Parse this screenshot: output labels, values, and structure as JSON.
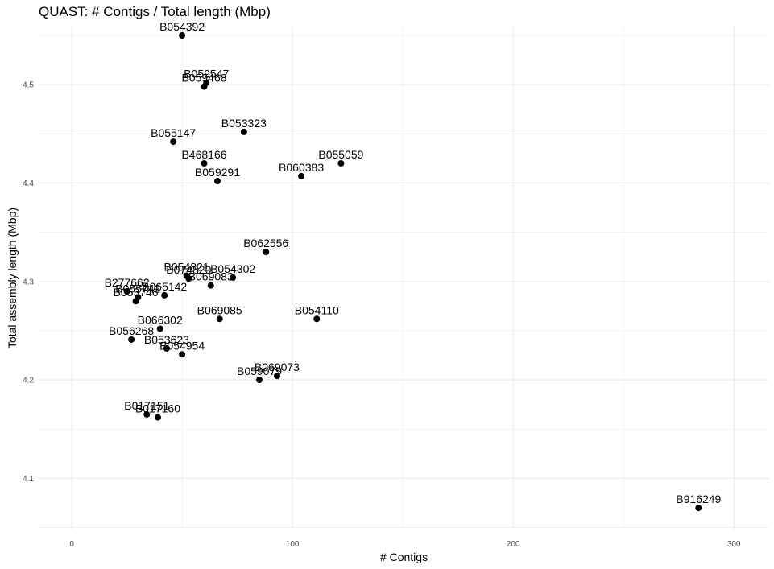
{
  "chart_data": {
    "type": "scatter",
    "title": "QUAST: # Contigs / Total length (Mbp)",
    "xlabel": "# Contigs",
    "ylabel": "Total assembly length (Mbp)",
    "xlim": [
      -15,
      316
    ],
    "ylim": [
      4.048,
      4.559
    ],
    "x_ticks": [
      0,
      100,
      200,
      300
    ],
    "y_ticks": [
      4.1,
      4.2,
      4.3,
      4.4,
      4.5
    ],
    "grid": true,
    "points": [
      {
        "label": "B054392",
        "x": 50,
        "y": 4.55
      },
      {
        "label": "B059547",
        "x": 61,
        "y": 4.502
      },
      {
        "label": "B059468",
        "x": 60,
        "y": 4.498
      },
      {
        "label": "B053323",
        "x": 78,
        "y": 4.452
      },
      {
        "label": "B055147",
        "x": 46,
        "y": 4.442
      },
      {
        "label": "B468166",
        "x": 60,
        "y": 4.42
      },
      {
        "label": "B055059",
        "x": 122,
        "y": 4.42
      },
      {
        "label": "B060383",
        "x": 104,
        "y": 4.407
      },
      {
        "label": "B059291",
        "x": 66,
        "y": 4.402
      },
      {
        "label": "B062556",
        "x": 88,
        "y": 4.33
      },
      {
        "label": "B054821",
        "x": 52,
        "y": 4.306
      },
      {
        "label": "B074820",
        "x": 53,
        "y": 4.303
      },
      {
        "label": "B054302",
        "x": 73,
        "y": 4.304
      },
      {
        "label": "B069083",
        "x": 63,
        "y": 4.296
      },
      {
        "label": "B277662",
        "x": 25,
        "y": 4.29
      },
      {
        "label": "B055742",
        "x": 30,
        "y": 4.284
      },
      {
        "label": "B065142",
        "x": 42,
        "y": 4.286
      },
      {
        "label": "B053746",
        "x": 29,
        "y": 4.28
      },
      {
        "label": "B069085",
        "x": 67,
        "y": 4.262
      },
      {
        "label": "B054110",
        "x": 111,
        "y": 4.262
      },
      {
        "label": "B066302",
        "x": 40,
        "y": 4.252
      },
      {
        "label": "B056268",
        "x": 27,
        "y": 4.241
      },
      {
        "label": "B053623",
        "x": 43,
        "y": 4.232
      },
      {
        "label": "B054954",
        "x": 50,
        "y": 4.226
      },
      {
        "label": "B069073",
        "x": 93,
        "y": 4.204
      },
      {
        "label": "B059079",
        "x": 85,
        "y": 4.2
      },
      {
        "label": "B017151",
        "x": 34,
        "y": 4.165
      },
      {
        "label": "B017160",
        "x": 39,
        "y": 4.162
      },
      {
        "label": "B916249",
        "x": 284,
        "y": 4.07
      }
    ]
  },
  "colors": {
    "point": "#000000",
    "grid": "#ebebeb",
    "background": "#ffffff"
  }
}
